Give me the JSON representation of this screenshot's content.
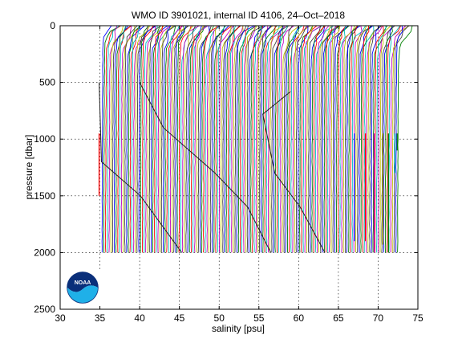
{
  "chart_data": {
    "type": "line",
    "title": "WMO ID 3901021, internal ID 4106, 24–Oct–2018",
    "xlabel": "salinity [psu]",
    "ylabel": "pressure [dbar]",
    "xlim": [
      30,
      75
    ],
    "ylim": [
      2500,
      0
    ],
    "y_reversed": true,
    "grid": true,
    "x_ticks": [
      30,
      35,
      40,
      45,
      50,
      55,
      60,
      65,
      70,
      75
    ],
    "y_ticks": [
      0,
      500,
      1000,
      1500,
      2000,
      2500
    ],
    "profile_count": 170,
    "profile_offset_step": 0.22,
    "first_profile_start_salinity": 35.4,
    "surface_salinity_spread": 1.4,
    "deep_salinity_offset": -0.6,
    "surface_layer_pressure": 250,
    "max_pressure": 2000,
    "series_colors": [
      "#0000ff",
      "#008000",
      "#ff0000",
      "#00bfbf",
      "#bf00bf",
      "#bfbf00",
      "#404040"
    ],
    "envelope_lines": [
      {
        "name": "",
        "points": [
          [
            34.9,
            500
          ],
          [
            35.2,
            1200
          ],
          [
            40.1,
            1500
          ],
          [
            45.3,
            2000
          ]
        ]
      },
      {
        "name": "",
        "points": [
          [
            40.0,
            500
          ],
          [
            43.0,
            900
          ],
          [
            49.5,
            1300
          ],
          [
            53.6,
            1600
          ],
          [
            56.5,
            2000
          ]
        ]
      },
      {
        "name": "",
        "points": [
          [
            59.0,
            580
          ],
          [
            55.5,
            780
          ],
          [
            57.0,
            1300
          ],
          [
            60.2,
            1600
          ],
          [
            63.3,
            2000
          ]
        ]
      }
    ],
    "short_profiles": [
      {
        "x": 34.9,
        "p_end": 1500,
        "color": "#ff0000"
      },
      {
        "x": 67.0,
        "p_end": 1900,
        "color": "#0000ff"
      },
      {
        "x": 68.4,
        "p_end": 1900,
        "color": "#ff0000"
      },
      {
        "x": 69.5,
        "p_end": 2000,
        "color": "#bf00bf"
      },
      {
        "x": 70.6,
        "p_end": 1930,
        "color": "#bfbf00"
      },
      {
        "x": 71.3,
        "p_end": 2000,
        "color": "#008000"
      },
      {
        "x": 72.1,
        "p_end": 1300,
        "color": "#00bfbf"
      },
      {
        "x": 72.4,
        "p_end": 1100,
        "color": "#008000"
      }
    ]
  },
  "logo": {
    "text": "NOAA",
    "icon": "noaa-logo-icon",
    "colors": {
      "sky": "#0a2f7a",
      "water": "#1fb0e8",
      "rim": "#ffffff"
    }
  }
}
